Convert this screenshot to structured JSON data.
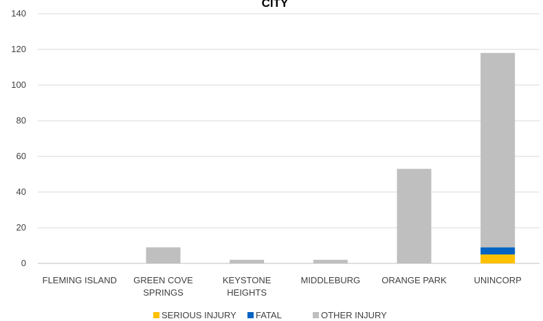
{
  "chart_data": {
    "type": "bar",
    "stacked": true,
    "title": "CITY",
    "categories": [
      [
        "FLEMING ISLAND"
      ],
      [
        "GREEN COVE",
        "SPRINGS"
      ],
      [
        "KEYSTONE",
        "HEIGHTS"
      ],
      [
        "MIDDLEBURG"
      ],
      [
        "ORANGE PARK"
      ],
      [
        "UNINCORP"
      ]
    ],
    "series": [
      {
        "name": "SERIOUS INJURY",
        "color": "#FFC000",
        "values": [
          0,
          0,
          0,
          0,
          0,
          5
        ]
      },
      {
        "name": "FATAL",
        "color": "#0563C1",
        "values": [
          0,
          0,
          0,
          0,
          0,
          4
        ]
      },
      {
        "name": "OTHER INJURY",
        "color": "#BFBFBF",
        "values": [
          0,
          9,
          2,
          2,
          53,
          109
        ]
      }
    ],
    "ylim": [
      0,
      140
    ],
    "yticks": [
      0,
      20,
      40,
      60,
      80,
      100,
      120,
      140
    ],
    "grid": true,
    "legend_position": "bottom"
  }
}
